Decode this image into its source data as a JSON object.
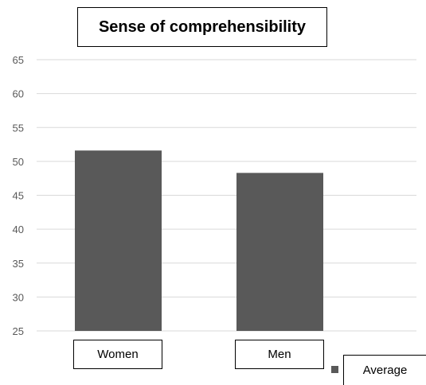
{
  "chart_data": {
    "type": "bar",
    "title": "Sense of comprehensibility",
    "categories": [
      "Women",
      "Men"
    ],
    "series": [
      {
        "name": "Average",
        "values": [
          51.6,
          48.3
        ],
        "color": "#595959"
      }
    ],
    "ylim": [
      25,
      65
    ],
    "yticks": [
      25,
      30,
      35,
      40,
      45,
      50,
      55,
      60,
      65
    ],
    "xlabel": "",
    "ylabel": "",
    "grid": true,
    "legend_position": "bottom-right"
  }
}
